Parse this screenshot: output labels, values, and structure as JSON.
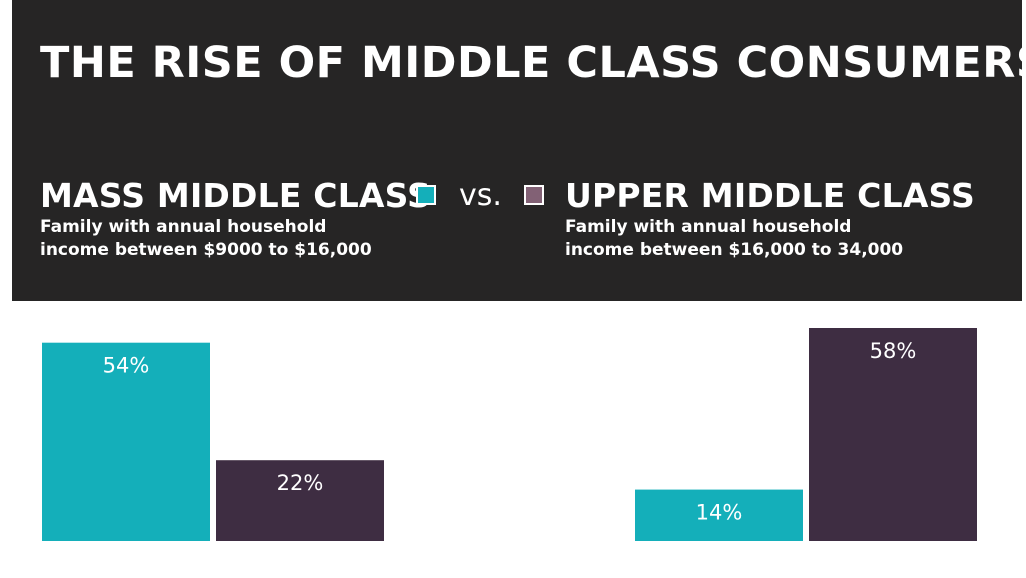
{
  "header": {
    "title": "THE RISE OF MIDDLE CLASS CONSUMERS",
    "vs": "vs.",
    "groups": [
      {
        "title": "MASS MIDDLE CLASS",
        "desc_line1": "Family with annual household",
        "desc_line2": "income between $9000  to $16,000",
        "color": "#14afba"
      },
      {
        "title": "UPPER MIDDLE CLASS",
        "desc_line1": "Family with annual household",
        "desc_line2": "income between $16,000  to 34,000",
        "color": "#826175"
      }
    ]
  },
  "chart_data": {
    "type": "bar",
    "categories": [
      "",
      ""
    ],
    "series": [
      {
        "name": "MASS MIDDLE CLASS",
        "color": "#14afba",
        "values": [
          54,
          14
        ],
        "labels": [
          "54%",
          "14%"
        ]
      },
      {
        "name": "UPPER MIDDLE CLASS",
        "color": "#3e2d42",
        "values": [
          22,
          58
        ],
        "labels": [
          "22%",
          "58%"
        ]
      }
    ],
    "ylim": [
      0,
      58
    ],
    "grid": false,
    "legend": "top"
  }
}
